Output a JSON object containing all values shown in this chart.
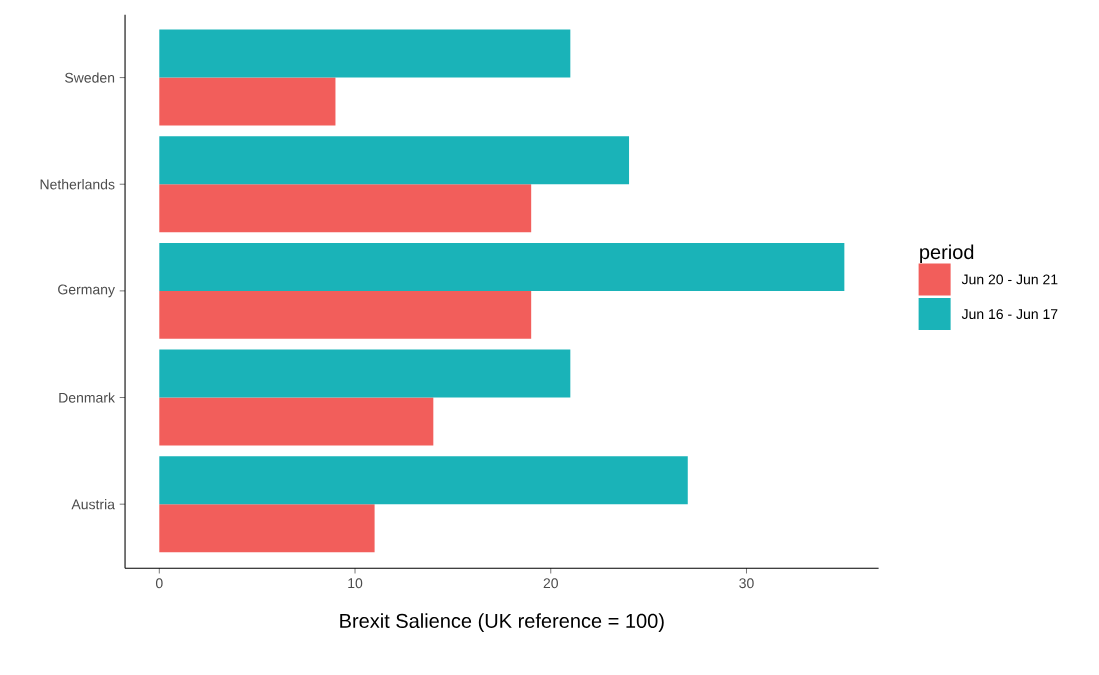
{
  "chart_data": {
    "type": "bar",
    "orientation": "horizontal",
    "xlabel": "Brexit Salience (UK reference = 100)",
    "legend_title": "period",
    "categories": [
      "Sweden",
      "Netherlands",
      "Germany",
      "Denmark",
      "Austria"
    ],
    "series": [
      {
        "name": "Jun 20 - Jun 21",
        "color": "#f25e5b",
        "values": [
          9,
          19,
          19,
          14,
          11
        ]
      },
      {
        "name": "Jun 16 - Jun 17",
        "color": "#1ab3b8",
        "values": [
          21,
          24,
          35,
          21,
          27
        ]
      }
    ],
    "xlim": [
      -1.75,
      36.75
    ],
    "xticks": [
      0,
      10,
      20,
      30
    ],
    "grid": false,
    "legend": "right"
  }
}
